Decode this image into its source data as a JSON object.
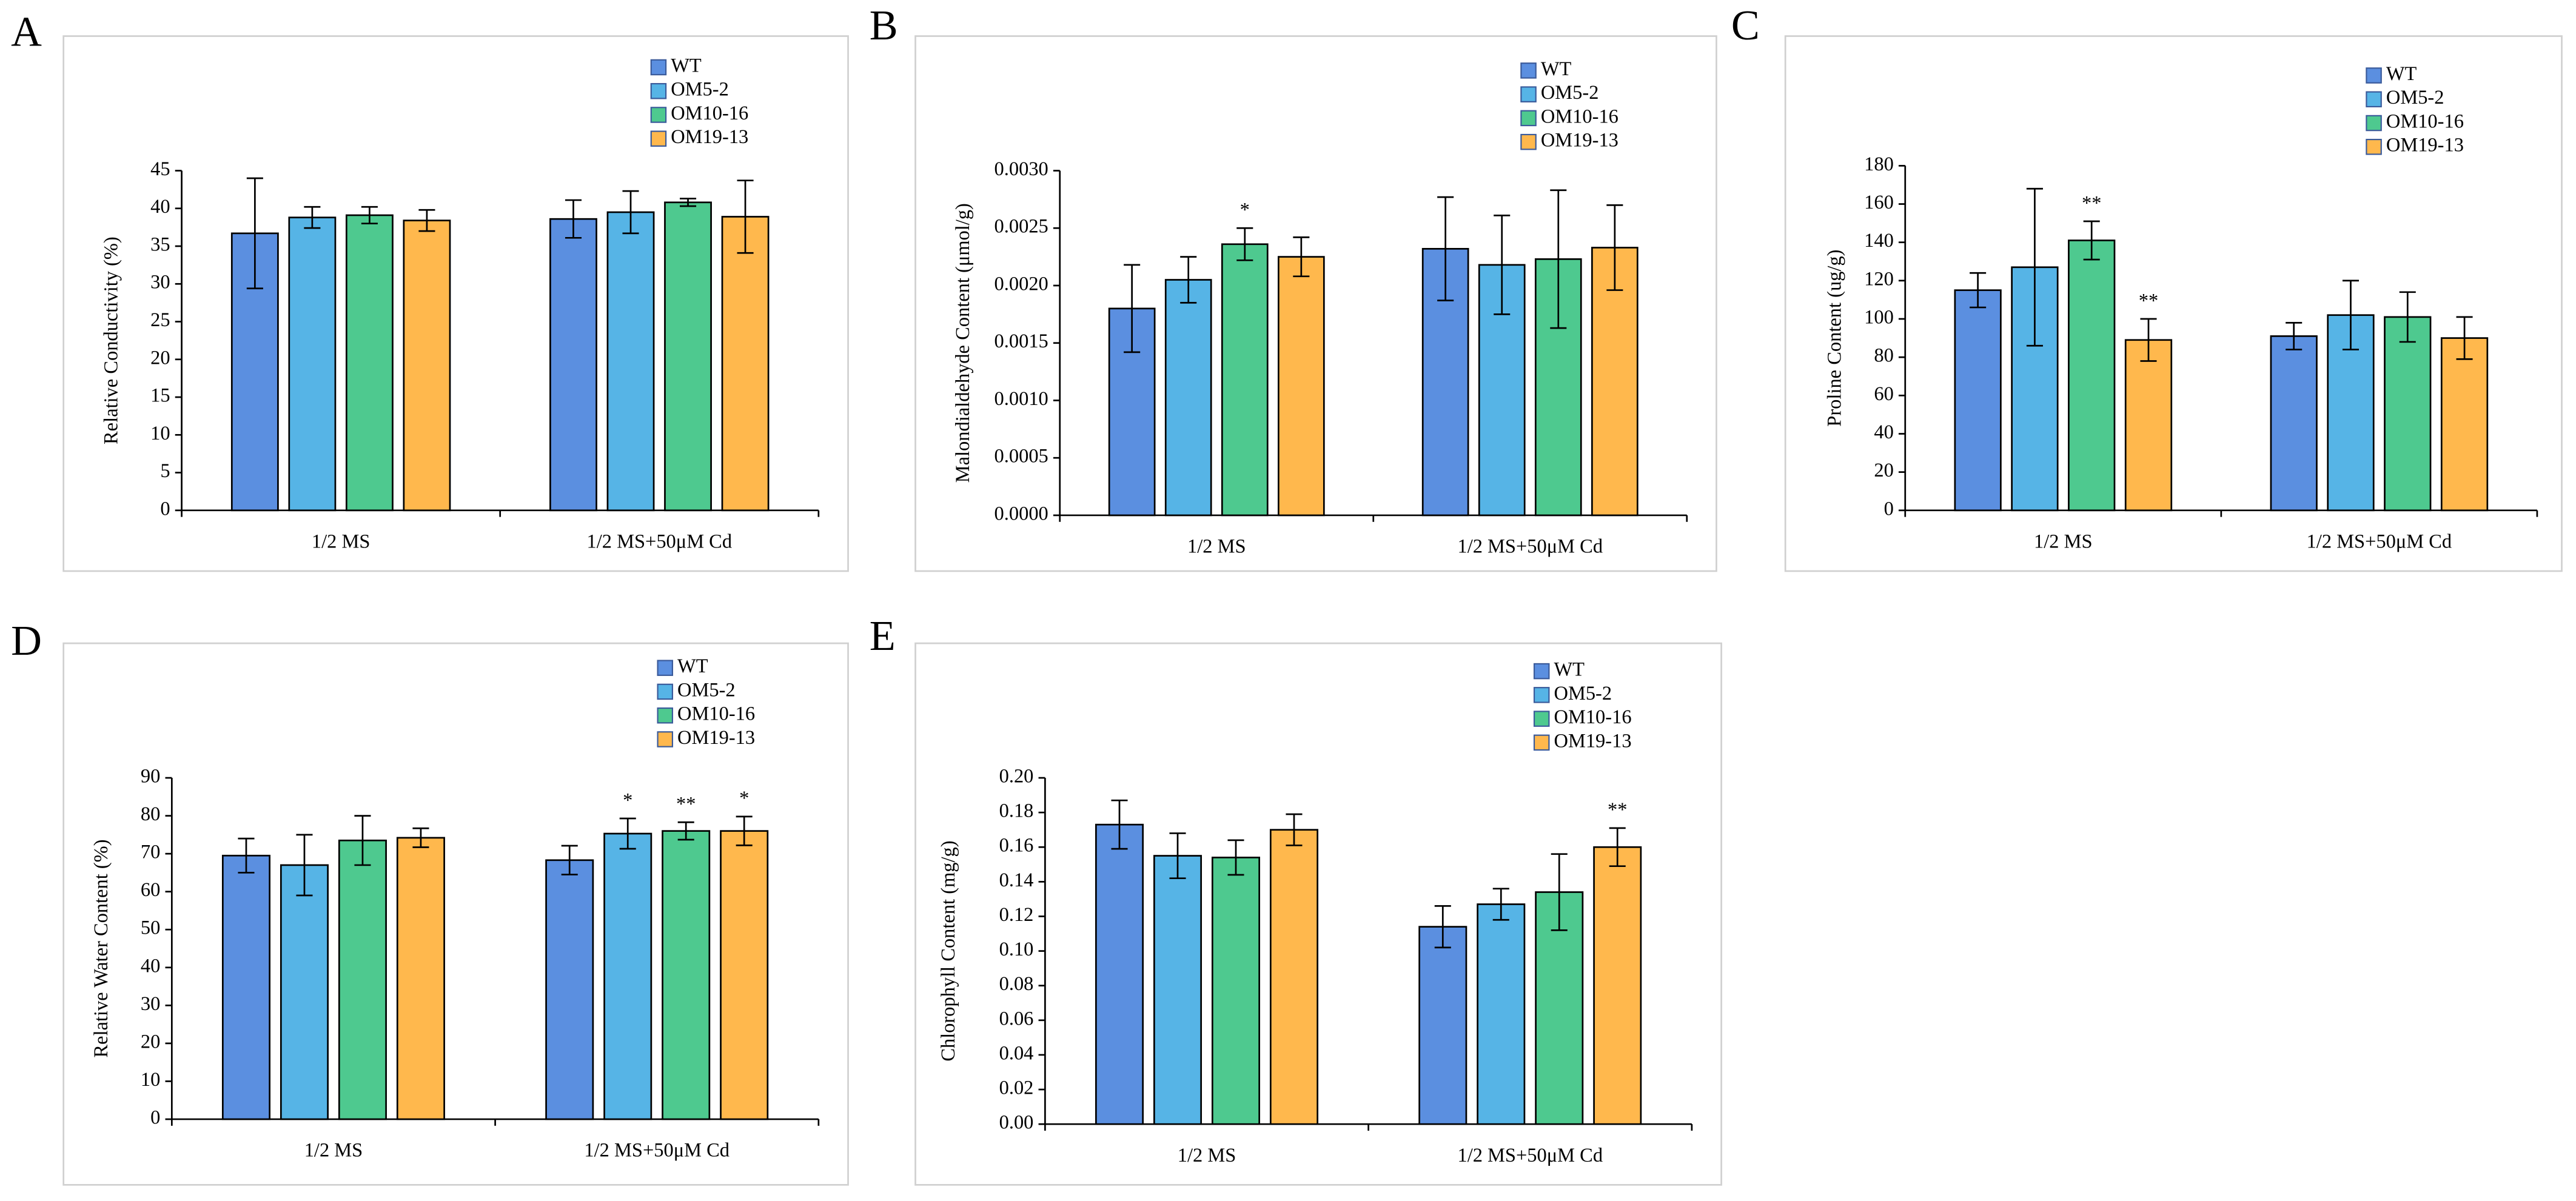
{
  "chart_data": [
    {
      "type": "bar",
      "panel": "A",
      "y_label": "Relative Conductivity (%)",
      "categories": [
        "1/2 MS",
        "1/2 MS+50μM Cd"
      ],
      "ylim": [
        0,
        45
      ],
      "yticks": [
        0,
        5,
        10,
        15,
        20,
        25,
        30,
        35,
        40,
        45
      ],
      "series": [
        {
          "name": "WT",
          "color": "#5b8fe0",
          "values": [
            36.7,
            38.6
          ],
          "errors": [
            7.3,
            2.5
          ]
        },
        {
          "name": "OM5-2",
          "color": "#56b4e6",
          "values": [
            38.8,
            39.5
          ],
          "errors": [
            1.4,
            2.8
          ]
        },
        {
          "name": "OM10-16",
          "color": "#4ec98f",
          "values": [
            39.1,
            40.8
          ],
          "errors": [
            1.1,
            0.5
          ]
        },
        {
          "name": "OM19-13",
          "color": "#ffb84d",
          "values": [
            38.4,
            38.9
          ],
          "errors": [
            1.4,
            4.8
          ]
        }
      ]
    },
    {
      "type": "bar",
      "panel": "B",
      "y_label": "Malondialdehyde Content (μmol/g)",
      "categories": [
        "1/2 MS",
        "1/2 MS+50μM Cd"
      ],
      "ylim": [
        0,
        0.003
      ],
      "yticks": [
        {
          "value": 0,
          "label": "0.0000"
        },
        {
          "value": 0.0005,
          "label": "0.0005"
        },
        {
          "value": 0.001,
          "label": "0.0010"
        },
        {
          "value": 0.0015,
          "label": "0.0015"
        },
        {
          "value": 0.002,
          "label": "0.0020"
        },
        {
          "value": 0.0025,
          "label": "0.0025"
        },
        {
          "value": 0.003,
          "label": "0.0030"
        }
      ],
      "series": [
        {
          "name": "WT",
          "color": "#5b8fe0",
          "values": [
            0.0018,
            0.00232
          ],
          "errors": [
            0.00038,
            0.00045
          ]
        },
        {
          "name": "OM5-2",
          "color": "#56b4e6",
          "values": [
            0.00205,
            0.00218
          ],
          "errors": [
            0.0002,
            0.00043
          ]
        },
        {
          "name": "OM10-16",
          "color": "#4ec98f",
          "values": [
            0.00236,
            0.00223
          ],
          "errors": [
            0.00014,
            0.0006
          ],
          "significance": [
            "*",
            null
          ]
        },
        {
          "name": "OM19-13",
          "color": "#ffb84d",
          "values": [
            0.00225,
            0.00233
          ],
          "errors": [
            0.00017,
            0.00037
          ]
        }
      ]
    },
    {
      "type": "bar",
      "panel": "C",
      "y_label": "Proline Content (ug/g)",
      "categories": [
        "1/2 MS",
        "1/2 MS+50μM Cd"
      ],
      "ylim": [
        0,
        180
      ],
      "yticks": [
        0,
        20,
        40,
        60,
        80,
        100,
        120,
        140,
        160,
        180
      ],
      "series": [
        {
          "name": "WT",
          "color": "#5b8fe0",
          "values": [
            115,
            91
          ],
          "errors": [
            9,
            7
          ]
        },
        {
          "name": "OM5-2",
          "color": "#56b4e6",
          "values": [
            127,
            102
          ],
          "errors": [
            41,
            18
          ]
        },
        {
          "name": "OM10-16",
          "color": "#4ec98f",
          "values": [
            141,
            101
          ],
          "errors": [
            10,
            13
          ],
          "significance": [
            "**",
            null
          ]
        },
        {
          "name": "OM19-13",
          "color": "#ffb84d",
          "values": [
            89,
            90
          ],
          "errors": [
            11,
            11
          ],
          "significance": [
            "**",
            null
          ]
        }
      ]
    },
    {
      "type": "bar",
      "panel": "D",
      "y_label": "Relative Water Content (%)",
      "categories": [
        "1/2 MS",
        "1/2 MS+50μM Cd"
      ],
      "ylim": [
        0,
        90
      ],
      "yticks": [
        0,
        10,
        20,
        30,
        40,
        50,
        60,
        70,
        80,
        90
      ],
      "series": [
        {
          "name": "WT",
          "color": "#5b8fe0",
          "values": [
            69.5,
            68.3
          ],
          "errors": [
            4.5,
            3.8
          ]
        },
        {
          "name": "OM5-2",
          "color": "#56b4e6",
          "values": [
            67,
            75.3
          ],
          "errors": [
            8,
            4
          ],
          "significance": [
            null,
            "*"
          ]
        },
        {
          "name": "OM10-16",
          "color": "#4ec98f",
          "values": [
            73.5,
            76
          ],
          "errors": [
            6.5,
            2.3
          ],
          "significance": [
            null,
            "**"
          ]
        },
        {
          "name": "OM19-13",
          "color": "#ffb84d",
          "values": [
            74.2,
            76
          ],
          "errors": [
            2.5,
            3.8
          ],
          "significance": [
            null,
            "*"
          ]
        }
      ]
    },
    {
      "type": "bar",
      "panel": "E",
      "y_label": "Chlorophyll Content (mg/g)",
      "categories": [
        "1/2 MS",
        "1/2 MS+50μM Cd"
      ],
      "ylim": [
        0,
        0.2
      ],
      "yticks": [
        {
          "value": 0,
          "label": "0.00"
        },
        {
          "value": 0.02,
          "label": "0.02"
        },
        {
          "value": 0.04,
          "label": "0.04"
        },
        {
          "value": 0.06,
          "label": "0.06"
        },
        {
          "value": 0.08,
          "label": "0.08"
        },
        {
          "value": 0.1,
          "label": "0.10"
        },
        {
          "value": 0.12,
          "label": "0.12"
        },
        {
          "value": 0.14,
          "label": "0.14"
        },
        {
          "value": 0.16,
          "label": "0.16"
        },
        {
          "value": 0.18,
          "label": "0.18"
        },
        {
          "value": 0.2,
          "label": "0.20"
        }
      ],
      "series": [
        {
          "name": "WT",
          "color": "#5b8fe0",
          "values": [
            0.173,
            0.114
          ],
          "errors": [
            0.014,
            0.012
          ]
        },
        {
          "name": "OM5-2",
          "color": "#56b4e6",
          "values": [
            0.155,
            0.127
          ],
          "errors": [
            0.013,
            0.009
          ]
        },
        {
          "name": "OM10-16",
          "color": "#4ec98f",
          "values": [
            0.154,
            0.134
          ],
          "errors": [
            0.01,
            0.022
          ]
        },
        {
          "name": "OM19-13",
          "color": "#ffb84d",
          "values": [
            0.17,
            0.16
          ],
          "errors": [
            0.009,
            0.011
          ],
          "significance": [
            null,
            "**"
          ]
        }
      ]
    }
  ]
}
